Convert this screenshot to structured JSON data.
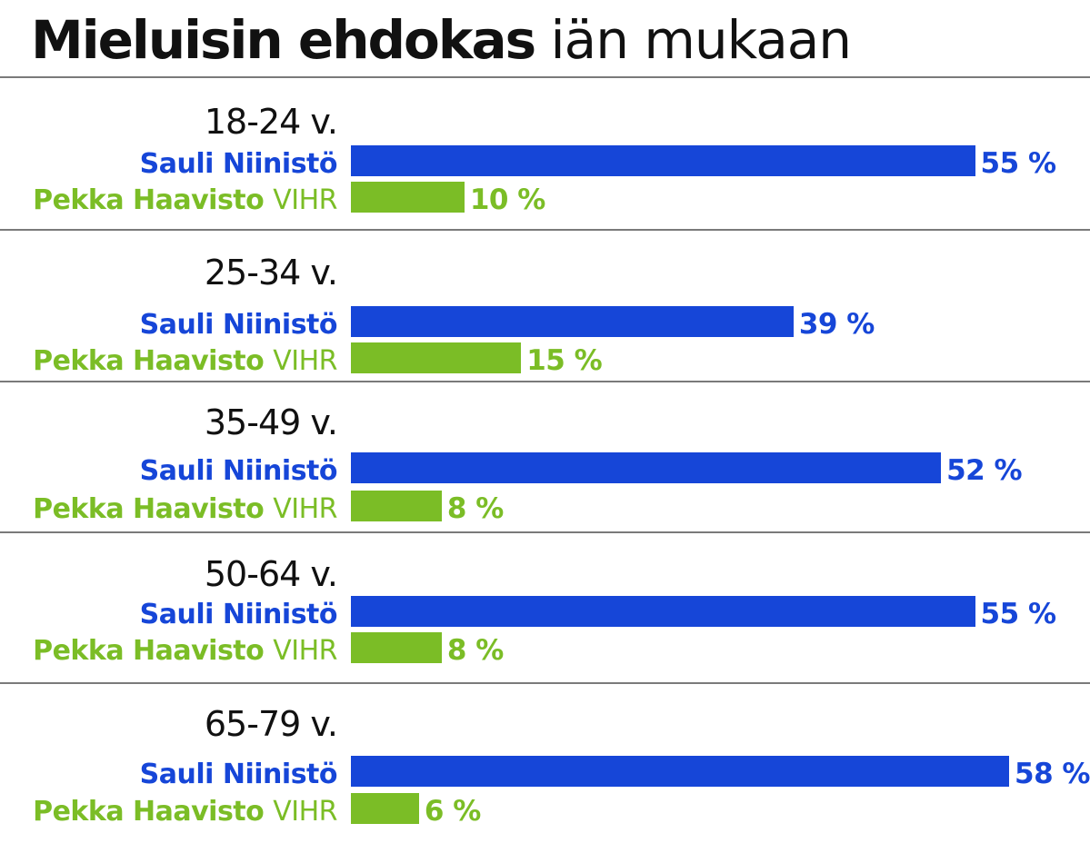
{
  "title_bold": "Mieluisin ehdokas",
  "title_light": "iän mukaan",
  "colors": {
    "niinisto": "#1646d8",
    "haavisto": "#7bbd26",
    "text": "#111111",
    "divider": "#7a7a7a"
  },
  "chart_data": {
    "type": "bar",
    "orientation": "horizontal",
    "title": "Mieluisin ehdokas iän mukaan",
    "categories": [
      "18-24 v.",
      "25-34 v.",
      "35-49 v.",
      "50-64 v.",
      "65-79 v."
    ],
    "value_suffix": " %",
    "series": [
      {
        "name": "Sauli Niinistö",
        "party": "",
        "color": "#1646d8",
        "values": [
          55,
          39,
          52,
          55,
          58
        ]
      },
      {
        "name": "Pekka Haavisto",
        "party": "VIHR",
        "color": "#7bbd26",
        "values": [
          10,
          15,
          8,
          8,
          6
        ]
      }
    ],
    "xlim": [
      0,
      58
    ]
  }
}
